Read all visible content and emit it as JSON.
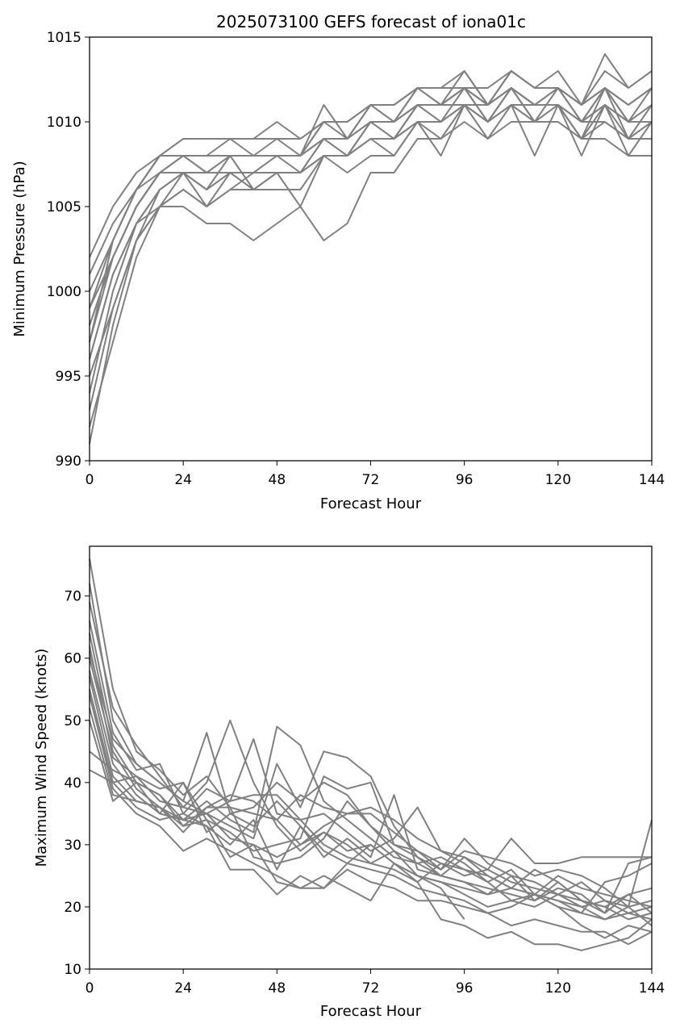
{
  "colors": {
    "series": "#808080",
    "axes": "#000000",
    "background": "#ffffff"
  },
  "chart_data": [
    {
      "type": "line",
      "title": "2025073100 GEFS forecast of iona01c",
      "xlabel": "Forecast Hour",
      "ylabel": "Minimum Pressure (hPa)",
      "xlim": [
        0,
        144
      ],
      "ylim": [
        990,
        1015
      ],
      "xticks": [
        0,
        24,
        48,
        72,
        96,
        120,
        144
      ],
      "xtick_labels": [
        "0",
        "24",
        "48",
        "72",
        "96",
        "120",
        "144"
      ],
      "yticks": [
        990,
        995,
        1000,
        1005,
        1010,
        1015
      ],
      "ytick_labels": [
        "990",
        "995",
        "1000",
        "1005",
        "1010",
        "1015"
      ],
      "grid": false,
      "x": [
        0,
        6,
        12,
        18,
        24,
        30,
        36,
        42,
        48,
        54,
        60,
        66,
        72,
        78,
        84,
        90,
        96,
        102,
        108,
        114,
        120,
        126,
        132,
        138,
        144
      ],
      "series": [
        {
          "values": [
            991,
            998,
            1003,
            1005,
            1005,
            1004,
            1004,
            1003,
            1004,
            1005,
            1003,
            1004,
            1007,
            1007,
            1009,
            1009,
            1010,
            1009,
            1010,
            1010,
            1010,
            1009,
            1009,
            1008,
            1008
          ]
        },
        {
          "values": [
            996,
            1001,
            1004,
            1005,
            1006,
            1005,
            1006,
            1006,
            1006,
            1006,
            1008,
            1008,
            1009,
            1009,
            1010,
            1010,
            1011,
            1010,
            1011,
            1011,
            1011,
            1010,
            1010,
            1009,
            1009
          ]
        },
        {
          "values": [
            994,
            1000,
            1004,
            1006,
            1007,
            1006,
            1007,
            1007,
            1007,
            1007,
            1008,
            1008,
            1009,
            1009,
            1011,
            1011,
            1011,
            1011,
            1012,
            1011,
            1011,
            1010,
            1011,
            1010,
            1010
          ]
        },
        {
          "values": [
            998,
            1002,
            1005,
            1007,
            1007,
            1007,
            1007,
            1007,
            1008,
            1008,
            1009,
            1009,
            1010,
            1010,
            1011,
            1011,
            1012,
            1011,
            1012,
            1011,
            1012,
            1011,
            1012,
            1011,
            1012
          ]
        },
        {
          "values": [
            1001,
            1004,
            1006,
            1008,
            1008,
            1008,
            1008,
            1008,
            1008,
            1008,
            1010,
            1010,
            1011,
            1011,
            1012,
            1012,
            1012,
            1012,
            1013,
            1012,
            1012,
            1011,
            1013,
            1012,
            1013
          ]
        },
        {
          "values": [
            999,
            1002,
            1005,
            1007,
            1008,
            1007,
            1008,
            1008,
            1008,
            1008,
            1011,
            1009,
            1011,
            1010,
            1011,
            1011,
            1013,
            1011,
            1013,
            1012,
            1013,
            1011,
            1014,
            1012,
            1013
          ]
        },
        {
          "values": [
            995,
            999,
            1003,
            1005,
            1006,
            1005,
            1006,
            1007,
            1007,
            1007,
            1008,
            1007,
            1008,
            1008,
            1010,
            1008,
            1011,
            1009,
            1011,
            1008,
            1011,
            1008,
            1011,
            1008,
            1010
          ]
        },
        {
          "values": [
            993,
            999,
            1003,
            1006,
            1007,
            1006,
            1008,
            1006,
            1007,
            1005,
            1008,
            1008,
            1009,
            1009,
            1010,
            1009,
            1011,
            1010,
            1012,
            1010,
            1011,
            1009,
            1012,
            1009,
            1011
          ]
        },
        {
          "values": [
            997,
            1003,
            1006,
            1008,
            1009,
            1009,
            1009,
            1009,
            1010,
            1009,
            1010,
            1009,
            1011,
            1010,
            1012,
            1011,
            1012,
            1010,
            1012,
            1011,
            1012,
            1010,
            1012,
            1010,
            1011
          ]
        },
        {
          "values": [
            1000,
            1003,
            1006,
            1008,
            1008,
            1008,
            1009,
            1008,
            1009,
            1008,
            1009,
            1009,
            1010,
            1010,
            1012,
            1011,
            1012,
            1011,
            1013,
            1012,
            1012,
            1011,
            1012,
            1010,
            1012
          ]
        },
        {
          "values": [
            992,
            997,
            1002,
            1005,
            1007,
            1005,
            1007,
            1006,
            1007,
            1007,
            1009,
            1008,
            1010,
            1009,
            1011,
            1010,
            1012,
            1010,
            1012,
            1010,
            1012,
            1010,
            1011,
            1010,
            1011
          ]
        },
        {
          "values": [
            999,
            1003,
            1006,
            1007,
            1008,
            1007,
            1008,
            1008,
            1008,
            1007,
            1009,
            1009,
            1010,
            1010,
            1011,
            1011,
            1012,
            1011,
            1012,
            1011,
            1011,
            1010,
            1012,
            1011,
            1012
          ]
        },
        {
          "values": [
            997,
            1002,
            1005,
            1007,
            1007,
            1007,
            1007,
            1007,
            1008,
            1008,
            1009,
            1008,
            1010,
            1009,
            1011,
            1010,
            1011,
            1010,
            1011,
            1010,
            1011,
            1009,
            1011,
            1009,
            1010
          ]
        },
        {
          "values": [
            1002,
            1005,
            1007,
            1008,
            1009,
            1009,
            1009,
            1009,
            1009,
            1009,
            1010,
            1010,
            1011,
            1011,
            1012,
            1012,
            1013,
            1011,
            1013,
            1012,
            1012,
            1011,
            1012,
            1011,
            1012
          ]
        },
        {
          "values": [
            996,
            1001,
            1004,
            1006,
            1007,
            1006,
            1007,
            1006,
            1007,
            1007,
            1008,
            1008,
            1009,
            1008,
            1010,
            1010,
            1011,
            1010,
            1011,
            1010,
            1010,
            1009,
            1010,
            1009,
            1010
          ]
        },
        {
          "values": [
            998,
            1002,
            1005,
            1007,
            1008,
            1008,
            1008,
            1008,
            1008,
            1008,
            1010,
            1010,
            1011,
            1011,
            1012,
            1012,
            1012,
            1011,
            1012,
            1011,
            1011,
            1010,
            1011,
            1010,
            1010
          ]
        }
      ]
    },
    {
      "type": "line",
      "title": "",
      "xlabel": "Forecast Hour",
      "ylabel": "Maximum Wind Speed (knots)",
      "xlim": [
        0,
        144
      ],
      "ylim": [
        10,
        78
      ],
      "xticks": [
        0,
        24,
        48,
        72,
        96,
        120,
        144
      ],
      "xtick_labels": [
        "0",
        "24",
        "48",
        "72",
        "96",
        "120",
        "144"
      ],
      "yticks": [
        10,
        20,
        30,
        40,
        50,
        60,
        70
      ],
      "ytick_labels": [
        "10",
        "20",
        "30",
        "40",
        "50",
        "60",
        "70"
      ],
      "grid": false,
      "x": [
        0,
        6,
        12,
        18,
        24,
        30,
        36,
        42,
        48,
        54,
        60,
        66,
        72,
        78,
        84,
        90,
        96,
        102,
        108,
        114,
        120,
        126,
        132,
        138,
        144
      ],
      "series": [
        {
          "values": [
            76,
            55,
            45,
            42,
            38,
            41,
            36,
            35,
            34,
            30,
            32,
            29,
            30,
            27,
            25,
            24,
            22,
            20,
            21,
            20,
            22,
            20,
            18,
            20,
            34
          ]
        },
        {
          "values": [
            72,
            50,
            43,
            40,
            37,
            48,
            35,
            33,
            37,
            33,
            28,
            31,
            28,
            38,
            26,
            25,
            24,
            23,
            22,
            21,
            23,
            22,
            19,
            27,
            28
          ]
        },
        {
          "values": [
            69,
            52,
            46,
            41,
            36,
            40,
            50,
            40,
            33,
            29,
            32,
            30,
            27,
            26,
            24,
            27,
            25,
            26,
            24,
            23,
            22,
            24,
            21,
            20,
            21
          ]
        },
        {
          "values": [
            66,
            48,
            42,
            43,
            35,
            39,
            37,
            47,
            35,
            34,
            35,
            32,
            29,
            31,
            36,
            29,
            27,
            24,
            26,
            22,
            25,
            23,
            22,
            21,
            20
          ]
        },
        {
          "values": [
            64,
            46,
            40,
            38,
            34,
            37,
            34,
            32,
            49,
            46,
            37,
            34,
            31,
            28,
            27,
            25,
            24,
            22,
            25,
            21,
            24,
            21,
            20,
            22,
            19
          ]
        },
        {
          "values": [
            62,
            44,
            41,
            37,
            36,
            35,
            33,
            31,
            43,
            36,
            45,
            44,
            41,
            33,
            28,
            26,
            31,
            27,
            25,
            24,
            22,
            21,
            19,
            22,
            23
          ]
        },
        {
          "values": [
            60,
            45,
            39,
            36,
            33,
            34,
            32,
            29,
            30,
            31,
            41,
            39,
            40,
            30,
            29,
            26,
            29,
            28,
            27,
            25,
            26,
            25,
            23,
            20,
            17
          ]
        },
        {
          "values": [
            58,
            43,
            38,
            35,
            34,
            35,
            31,
            30,
            28,
            30,
            33,
            35,
            36,
            34,
            31,
            29,
            28,
            26,
            31,
            27,
            27,
            28,
            28,
            28,
            28
          ]
        },
        {
          "values": [
            57,
            41,
            37,
            36,
            32,
            36,
            36,
            28,
            27,
            28,
            31,
            37,
            33,
            29,
            25,
            24,
            23,
            22,
            23,
            22,
            21,
            20,
            21,
            19,
            20
          ]
        },
        {
          "values": [
            55,
            40,
            36,
            34,
            35,
            33,
            30,
            34,
            26,
            33,
            29,
            27,
            26,
            25,
            23,
            22,
            21,
            19,
            20,
            22,
            20,
            17,
            15,
            17,
            16
          ]
        },
        {
          "values": [
            54,
            39,
            35,
            33,
            29,
            31,
            29,
            27,
            25,
            23,
            25,
            23,
            21,
            27,
            24,
            18,
            17,
            15,
            16,
            14,
            14,
            13,
            14,
            15,
            18
          ]
        },
        {
          "values": [
            52,
            38,
            37,
            36,
            34,
            33,
            26,
            26,
            22,
            25,
            23,
            26,
            24,
            23,
            21,
            21,
            20,
            19,
            17,
            18,
            17,
            16,
            16,
            14,
            16
          ]
        },
        {
          "values": [
            50,
            37,
            40,
            35,
            40,
            34,
            28,
            30,
            24,
            23,
            23,
            27,
            30,
            27,
            25,
            23,
            18,
            null,
            null,
            null,
            null,
            null,
            null,
            null,
            null
          ]
        },
        {
          "values": [
            45,
            42,
            40,
            38,
            33,
            36,
            38,
            37,
            34,
            38,
            36,
            35,
            35,
            32,
            29,
            27,
            26,
            24,
            21,
            22,
            20,
            19,
            18,
            19,
            18
          ]
        },
        {
          "values": [
            42,
            40,
            41,
            39,
            40,
            32,
            35,
            36,
            40,
            37,
            40,
            38,
            33,
            30,
            28,
            25,
            28,
            25,
            23,
            22,
            21,
            19,
            24,
            25,
            27
          ]
        },
        {
          "values": [
            61,
            47,
            43,
            40,
            37,
            35,
            37,
            38,
            38,
            34,
            30,
            28,
            27,
            29,
            27,
            28,
            26,
            25,
            23,
            26,
            24,
            21,
            20,
            18,
            19
          ]
        }
      ]
    }
  ]
}
